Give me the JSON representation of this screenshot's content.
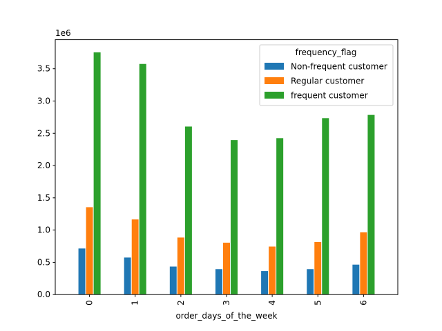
{
  "chart_data": {
    "type": "bar",
    "xlabel": "order_days_of_the_week",
    "ylabel": "",
    "title": "",
    "offset_label": "1e6",
    "categories": [
      "0",
      "1",
      "2",
      "3",
      "4",
      "5",
      "6"
    ],
    "ylim": [
      0,
      3.95
    ],
    "yticks": [
      0.0,
      0.5,
      1.0,
      1.5,
      2.0,
      2.5,
      3.0,
      3.5
    ],
    "ytick_labels": [
      "0.0",
      "0.5",
      "1.0",
      "1.5",
      "2.0",
      "2.5",
      "3.0",
      "3.5"
    ],
    "grid": false,
    "legend": {
      "title": "frequency_flag",
      "placement": "top-right"
    },
    "series": [
      {
        "name": "Non-frequent customer",
        "color": "#1f77b4",
        "values": [
          0.72,
          0.58,
          0.44,
          0.4,
          0.37,
          0.4,
          0.47
        ]
      },
      {
        "name": "Regular customer",
        "color": "#ff7f0e",
        "values": [
          1.36,
          1.17,
          0.89,
          0.81,
          0.75,
          0.82,
          0.97
        ]
      },
      {
        "name": "frequent customer",
        "color": "#2ca02c",
        "values": [
          3.76,
          3.58,
          2.61,
          2.4,
          2.43,
          2.74,
          2.79
        ]
      }
    ]
  }
}
